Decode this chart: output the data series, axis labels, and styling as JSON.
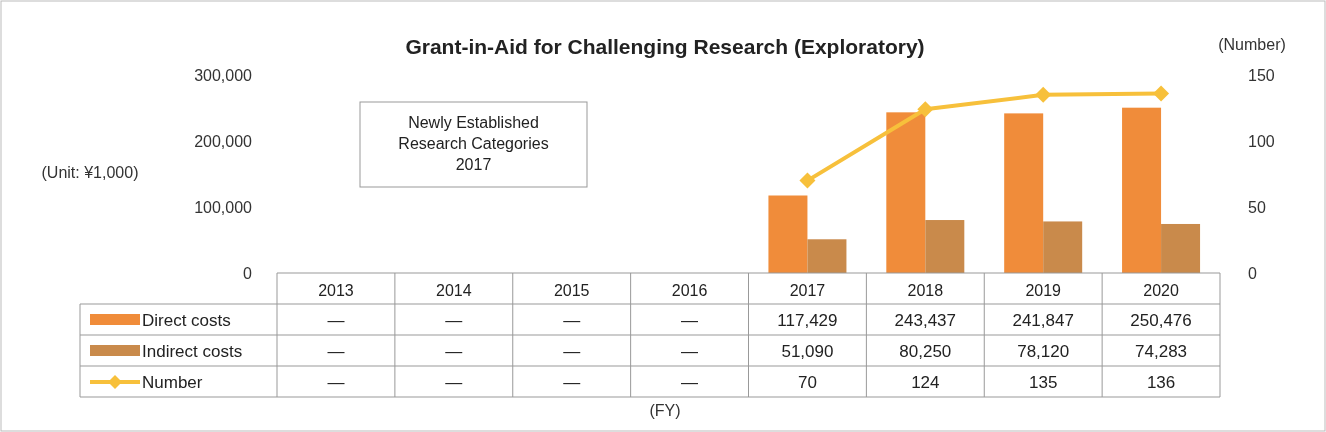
{
  "chart_data": {
    "type": "bar",
    "title": "Grant-in-Aid for Challenging Research (Exploratory)",
    "ylabel": "(Unit: ¥1,000)",
    "y2label": "(Number)",
    "categories": [
      "2013",
      "2014",
      "2015",
      "2016",
      "2017",
      "2018",
      "2019",
      "2020"
    ],
    "series": [
      {
        "name": "Direct costs",
        "color": "#f08c3a",
        "values": [
          null,
          null,
          null,
          null,
          117429,
          243437,
          241847,
          250476
        ],
        "value_labels": [
          "—",
          "—",
          "—",
          "—",
          "117,429",
          "243,437",
          "241,847",
          "250,476"
        ]
      },
      {
        "name": "Indirect costs",
        "color": "#c98a4b",
        "values": [
          null,
          null,
          null,
          null,
          51090,
          80250,
          78120,
          74283
        ],
        "value_labels": [
          "—",
          "—",
          "—",
          "—",
          "51,090",
          "80,250",
          "78,120",
          "74,283"
        ]
      },
      {
        "name": "Number",
        "type": "line",
        "axis": "y2",
        "color": "#f7c03b",
        "marker": "diamond",
        "values": [
          null,
          null,
          null,
          null,
          70,
          124,
          135,
          136
        ],
        "value_labels": [
          "—",
          "—",
          "—",
          "—",
          "70",
          "124",
          "135",
          "136"
        ]
      }
    ],
    "ylim": [
      0,
      300000
    ],
    "yticks": [
      {
        "value": 0,
        "label": "0"
      },
      {
        "value": 100000,
        "label": "100,000"
      },
      {
        "value": 200000,
        "label": "200,000"
      },
      {
        "value": 300000,
        "label": "300,000"
      }
    ],
    "y2lim": [
      0,
      150
    ],
    "y2ticks": [
      0,
      50,
      100,
      150
    ],
    "legend": "bottom",
    "grid": false,
    "annotations": [
      "Newly Established Research Categories 2017",
      "(FY)"
    ]
  }
}
